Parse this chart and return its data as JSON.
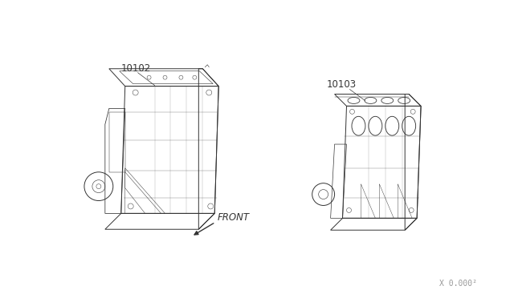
{
  "background_color": "#ffffff",
  "label_10102": "10102",
  "label_10103": "10103",
  "front_label": "FRONT",
  "ref_label": "X 0.000²",
  "fig_width": 6.4,
  "fig_height": 3.72,
  "dpi": 100,
  "line_color": "#333333",
  "line_width": 0.7
}
